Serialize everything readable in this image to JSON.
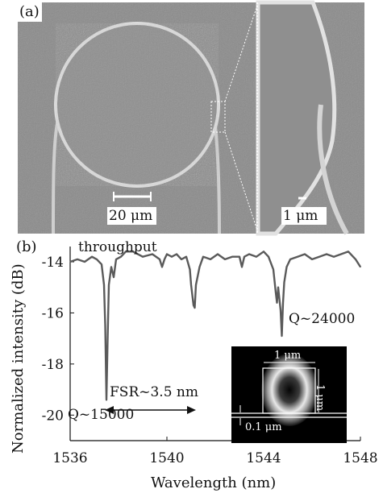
{
  "panel_a": {
    "label": "(a)",
    "scale_bar_left": "20 μm",
    "scale_bar_right": "1 μm"
  },
  "panel_b": {
    "label": "(b)",
    "annotations": {
      "throughput": "throughput",
      "q_left": "Q~15000",
      "q_right": "Q~24000",
      "fsr": "FSR~3.5 nm"
    },
    "inset": {
      "width_label": "1 μm",
      "height_label": "1 μm",
      "gap_label": "0.1 μm"
    }
  },
  "chart_data": {
    "type": "line",
    "xlabel": "Wavelength (nm)",
    "ylabel": "Normalized intensity (dB)",
    "xlim": [
      1536,
      1548
    ],
    "ylim": [
      -21,
      -13.4
    ],
    "xticks": [
      1536,
      1540,
      1544,
      1548
    ],
    "yticks": [
      -14,
      -16,
      -18,
      -20
    ],
    "grid": false,
    "series": [
      {
        "color": "#5a5a5a",
        "x": [
          1536.0,
          1536.3,
          1536.6,
          1536.9,
          1537.1,
          1537.3,
          1537.4,
          1537.45,
          1537.5,
          1537.55,
          1537.6,
          1537.7,
          1537.8,
          1537.9,
          1538.1,
          1538.3,
          1538.6,
          1539.0,
          1539.4,
          1539.7,
          1539.8,
          1539.9,
          1540.0,
          1540.2,
          1540.4,
          1540.6,
          1540.8,
          1540.95,
          1541.0,
          1541.1,
          1541.15,
          1541.2,
          1541.35,
          1541.5,
          1541.8,
          1542.1,
          1542.4,
          1542.7,
          1543.0,
          1543.1,
          1543.2,
          1543.4,
          1543.7,
          1544.0,
          1544.2,
          1544.4,
          1544.5,
          1544.55,
          1544.6,
          1544.7,
          1544.75,
          1544.8,
          1544.85,
          1544.95,
          1545.1,
          1545.4,
          1545.7,
          1546.0,
          1546.3,
          1546.6,
          1546.9,
          1547.2,
          1547.5,
          1547.8,
          1548.0
        ],
        "y": [
          -14.0,
          -13.9,
          -14.0,
          -13.8,
          -13.9,
          -14.1,
          -14.9,
          -16.5,
          -19.4,
          -17.0,
          -14.9,
          -14.2,
          -14.6,
          -13.9,
          -13.8,
          -13.6,
          -13.6,
          -13.8,
          -13.7,
          -13.9,
          -14.2,
          -13.9,
          -13.7,
          -13.8,
          -13.7,
          -13.9,
          -13.8,
          -14.3,
          -14.9,
          -15.7,
          -15.8,
          -14.9,
          -14.2,
          -13.8,
          -13.9,
          -13.7,
          -13.9,
          -13.8,
          -13.8,
          -14.2,
          -13.8,
          -13.7,
          -13.8,
          -13.6,
          -13.8,
          -14.3,
          -15.2,
          -15.6,
          -15.0,
          -15.9,
          -16.9,
          -15.6,
          -14.8,
          -14.2,
          -13.9,
          -13.8,
          -13.7,
          -13.9,
          -13.8,
          -13.7,
          -13.8,
          -13.7,
          -13.6,
          -13.9,
          -14.2
        ]
      }
    ]
  }
}
